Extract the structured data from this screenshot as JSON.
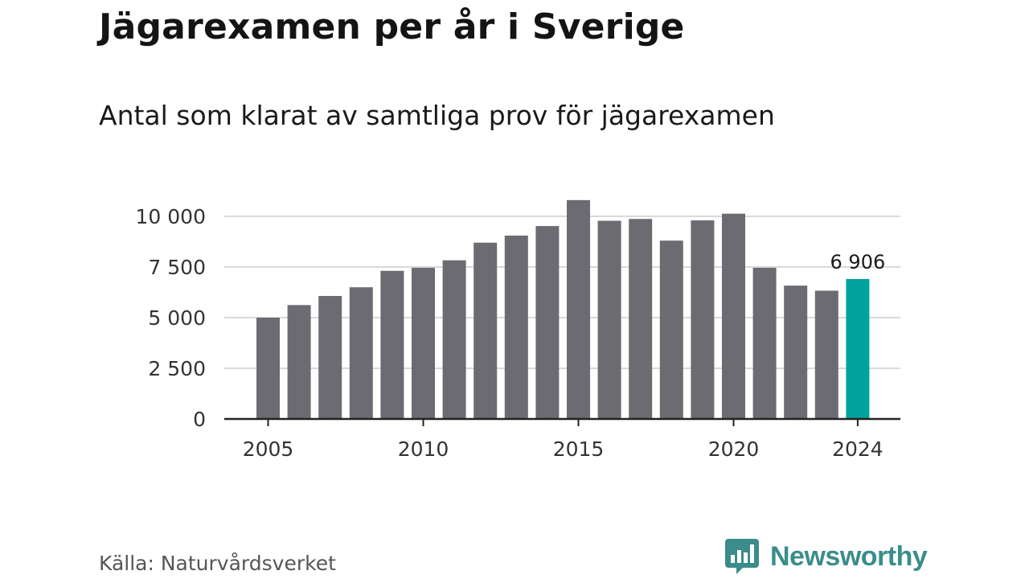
{
  "title": "Jägarexamen per år i Sverige",
  "subtitle": "Antal som klarat av samtliga prov för jägarexamen",
  "source": "Källa: Naturvårdsverket",
  "brand": {
    "name": "Newsworthy",
    "logo_icon": "bar-chart-speech-bubble-icon",
    "color": "#3a8d8a"
  },
  "colors": {
    "bar": "#6d6b72",
    "highlight": "#00a39b",
    "grid": "#d9d9d9",
    "axis": "#222222"
  },
  "chart_data": {
    "type": "bar",
    "title": "Jägarexamen per år i Sverige",
    "subtitle": "Antal som klarat av samtliga prov för jägarexamen",
    "categories": [
      2005,
      2006,
      2007,
      2008,
      2009,
      2010,
      2011,
      2012,
      2013,
      2014,
      2015,
      2016,
      2017,
      2018,
      2019,
      2020,
      2021,
      2022,
      2023,
      2024
    ],
    "values": [
      5000,
      5620,
      6070,
      6500,
      7310,
      7460,
      7830,
      8700,
      9050,
      9520,
      10800,
      9780,
      9870,
      8800,
      9800,
      10130,
      7460,
      6580,
      6330,
      6906
    ],
    "highlight_category": 2024,
    "ylim": [
      0,
      11000
    ],
    "yticks": [
      0,
      2500,
      5000,
      7500,
      10000
    ],
    "ytick_labels": [
      "0",
      "2 500",
      "5 000",
      "7 500",
      "10 000"
    ],
    "xticks": [
      2005,
      2010,
      2015,
      2020,
      2024
    ],
    "xtick_labels": [
      "2005",
      "2010",
      "2015",
      "2020",
      "2024"
    ],
    "data_labels": [
      {
        "category": 2024,
        "text": "6 906"
      }
    ],
    "xlabel": "",
    "ylabel": "",
    "grid": "horizontal",
    "legend": "none"
  }
}
